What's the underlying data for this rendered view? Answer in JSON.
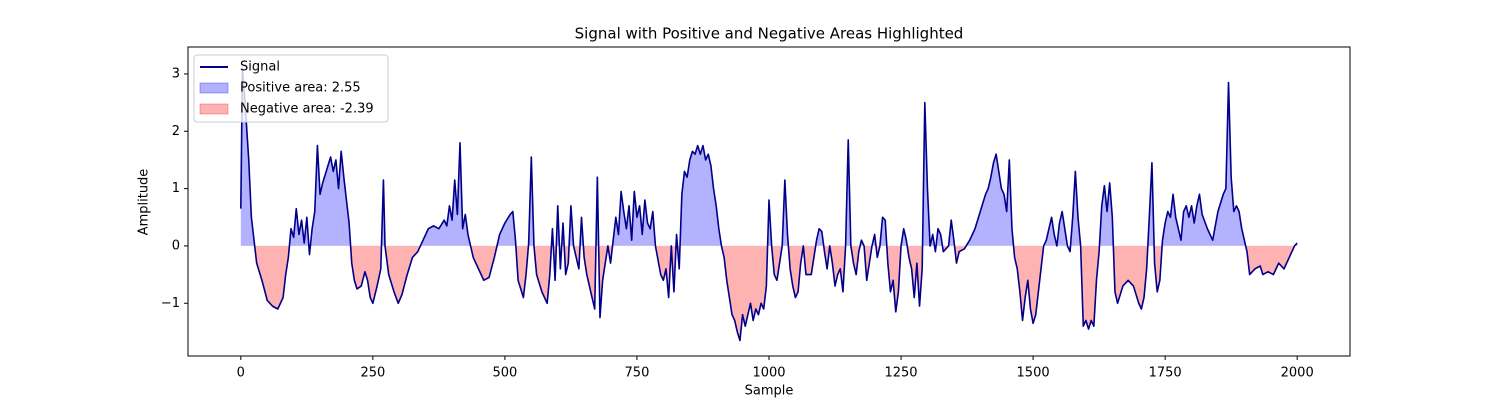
{
  "chart_data": {
    "type": "line",
    "title": "Signal with Positive and Negative Areas Highlighted",
    "x_label": "Sample",
    "y_label": "Amplitude",
    "xlim": [
      -100,
      2100
    ],
    "ylim": [
      -1.92,
      3.47
    ],
    "xticks": [
      0,
      250,
      500,
      750,
      1000,
      1250,
      1500,
      1750,
      2000
    ],
    "yticks": [
      {
        "value": -1,
        "label": "−1"
      },
      0,
      1,
      2,
      3
    ],
    "x": [
      0,
      3,
      8,
      15,
      20,
      25,
      30,
      40,
      50,
      60,
      70,
      80,
      85,
      90,
      95,
      100,
      105,
      110,
      115,
      120,
      125,
      130,
      135,
      140,
      145,
      150,
      155,
      165,
      170,
      175,
      180,
      185,
      190,
      195,
      200,
      205,
      210,
      215,
      220,
      228,
      235,
      240,
      245,
      250,
      258,
      265,
      270,
      273,
      280,
      290,
      298,
      305,
      315,
      325,
      335,
      345,
      355,
      365,
      375,
      385,
      390,
      395,
      400,
      405,
      410,
      415,
      420,
      425,
      430,
      440,
      450,
      460,
      470,
      480,
      490,
      500,
      510,
      515,
      520,
      525,
      535,
      540,
      545,
      550,
      555,
      560,
      570,
      580,
      585,
      590,
      595,
      600,
      605,
      610,
      615,
      620,
      625,
      630,
      640,
      645,
      650,
      655,
      660,
      665,
      670,
      675,
      680,
      685,
      690,
      695,
      700,
      710,
      715,
      720,
      725,
      730,
      735,
      740,
      745,
      750,
      755,
      760,
      765,
      770,
      775,
      780,
      785,
      795,
      800,
      805,
      810,
      815,
      820,
      825,
      830,
      835,
      840,
      845,
      850,
      855,
      860,
      865,
      870,
      875,
      880,
      885,
      890,
      895,
      900,
      905,
      910,
      915,
      920,
      925,
      930,
      935,
      940,
      945,
      950,
      955,
      960,
      965,
      970,
      975,
      980,
      985,
      990,
      995,
      1000,
      1005,
      1010,
      1015,
      1020,
      1025,
      1030,
      1035,
      1040,
      1045,
      1050,
      1055,
      1060,
      1065,
      1070,
      1080,
      1090,
      1095,
      1100,
      1105,
      1110,
      1115,
      1120,
      1125,
      1130,
      1135,
      1140,
      1145,
      1150,
      1155,
      1160,
      1165,
      1170,
      1175,
      1180,
      1185,
      1190,
      1195,
      1200,
      1205,
      1210,
      1215,
      1220,
      1225,
      1230,
      1235,
      1240,
      1245,
      1250,
      1255,
      1260,
      1265,
      1270,
      1275,
      1280,
      1285,
      1290,
      1295,
      1300,
      1305,
      1310,
      1315,
      1320,
      1325,
      1330,
      1340,
      1345,
      1350,
      1355,
      1360,
      1370,
      1380,
      1390,
      1400,
      1410,
      1415,
      1420,
      1425,
      1430,
      1435,
      1440,
      1445,
      1450,
      1455,
      1460,
      1465,
      1470,
      1475,
      1480,
      1485,
      1490,
      1495,
      1500,
      1505,
      1510,
      1515,
      1520,
      1525,
      1530,
      1535,
      1540,
      1545,
      1550,
      1555,
      1560,
      1565,
      1570,
      1575,
      1580,
      1585,
      1590,
      1595,
      1600,
      1605,
      1610,
      1615,
      1620,
      1625,
      1630,
      1635,
      1640,
      1645,
      1650,
      1655,
      1660,
      1670,
      1680,
      1690,
      1700,
      1705,
      1710,
      1715,
      1720,
      1725,
      1730,
      1735,
      1740,
      1745,
      1750,
      1755,
      1760,
      1765,
      1770,
      1775,
      1780,
      1785,
      1790,
      1795,
      1800,
      1805,
      1810,
      1815,
      1820,
      1830,
      1840,
      1850,
      1860,
      1865,
      1870,
      1875,
      1880,
      1885,
      1890,
      1895,
      1900,
      1905,
      1910,
      1920,
      1930,
      1935,
      1945,
      1955,
      1965,
      1975,
      1985,
      1995,
      2000
    ],
    "series": [
      {
        "name": "Signal",
        "color": "#00008b",
        "values": [
          0.65,
          3.1,
          2.5,
          1.5,
          0.5,
          0.1,
          -0.3,
          -0.6,
          -0.95,
          -1.05,
          -1.1,
          -0.9,
          -0.5,
          -0.2,
          0.3,
          0.15,
          0.65,
          0.2,
          0.45,
          0.05,
          0.5,
          -0.15,
          0.3,
          0.6,
          1.75,
          0.9,
          1.1,
          1.4,
          1.55,
          1.3,
          1.5,
          1.0,
          1.65,
          1.2,
          0.8,
          0.4,
          -0.3,
          -0.6,
          -0.75,
          -0.7,
          -0.45,
          -0.6,
          -0.9,
          -1.0,
          -0.7,
          -0.4,
          1.15,
          0.0,
          -0.5,
          -0.8,
          -1.0,
          -0.85,
          -0.5,
          -0.2,
          -0.1,
          0.1,
          0.3,
          0.35,
          0.3,
          0.45,
          0.35,
          0.7,
          0.45,
          1.15,
          0.55,
          1.8,
          0.3,
          0.55,
          0.2,
          -0.2,
          -0.4,
          -0.6,
          -0.55,
          -0.2,
          0.2,
          0.4,
          0.55,
          0.6,
          0.1,
          -0.6,
          -0.9,
          -0.5,
          0.05,
          1.55,
          0.0,
          -0.5,
          -0.8,
          -1.0,
          -0.5,
          0.3,
          -0.6,
          0.7,
          -0.4,
          0.4,
          -0.5,
          -0.3,
          0.7,
          0.0,
          -0.4,
          0.5,
          -0.2,
          -0.5,
          -0.7,
          -0.9,
          -1.1,
          1.2,
          -1.25,
          -0.6,
          -0.3,
          0.0,
          -0.3,
          0.5,
          0.2,
          0.95,
          0.6,
          0.3,
          0.7,
          0.1,
          0.95,
          0.5,
          0.7,
          0.2,
          0.8,
          0.4,
          0.3,
          0.6,
          0.0,
          -0.5,
          -0.6,
          -0.4,
          -0.9,
          0.0,
          -0.8,
          0.2,
          -0.4,
          0.9,
          1.3,
          1.2,
          1.5,
          1.65,
          1.6,
          1.75,
          1.6,
          1.75,
          1.5,
          1.6,
          1.4,
          1.0,
          0.7,
          0.3,
          0.0,
          -0.2,
          -0.6,
          -0.9,
          -1.2,
          -1.3,
          -1.5,
          -1.65,
          -1.2,
          -1.4,
          -1.2,
          -1.0,
          -1.3,
          -1.1,
          -1.2,
          -1.0,
          -1.1,
          -0.7,
          0.8,
          0.0,
          -0.5,
          -0.6,
          -0.3,
          0.0,
          1.15,
          0.2,
          -0.4,
          -0.7,
          -0.9,
          -0.8,
          -0.3,
          0.0,
          -0.5,
          -0.5,
          0.1,
          0.3,
          0.25,
          -0.1,
          -0.4,
          0.0,
          -0.3,
          -0.7,
          -0.5,
          -0.4,
          -0.8,
          0.0,
          1.85,
          0.0,
          -0.3,
          -0.5,
          -0.1,
          0.1,
          0.0,
          -0.6,
          -0.3,
          0.0,
          0.2,
          -0.2,
          0.0,
          0.5,
          0.45,
          -0.3,
          -0.8,
          -0.6,
          -1.15,
          -0.8,
          0.0,
          0.3,
          0.1,
          -0.2,
          -0.4,
          -0.9,
          -0.3,
          -1.05,
          -0.4,
          2.5,
          1.0,
          0.0,
          0.2,
          -0.1,
          0.3,
          0.2,
          -0.1,
          0.0,
          0.45,
          0.1,
          -0.3,
          -0.1,
          -0.05,
          0.1,
          0.3,
          0.6,
          0.9,
          1.0,
          1.2,
          1.45,
          1.6,
          1.3,
          1.0,
          0.9,
          0.6,
          1.5,
          0.3,
          -0.2,
          -0.4,
          -0.8,
          -1.3,
          -0.9,
          -0.6,
          -1.1,
          -1.35,
          -1.2,
          -0.8,
          -0.4,
          0.0,
          0.1,
          0.3,
          0.5,
          0.2,
          0.0,
          0.4,
          0.6,
          0.3,
          0.0,
          -0.1,
          0.5,
          1.3,
          0.5,
          0.0,
          -1.4,
          -1.3,
          -1.45,
          -1.3,
          -1.4,
          -0.6,
          -0.1,
          0.7,
          1.05,
          0.6,
          1.1,
          0.5,
          -0.8,
          -1.0,
          -0.7,
          -0.6,
          -0.7,
          -1.0,
          -1.1,
          -0.9,
          -0.4,
          0.5,
          1.45,
          -0.3,
          -0.8,
          -0.6,
          0.1,
          0.4,
          0.6,
          0.5,
          0.9,
          0.5,
          0.3,
          0.1,
          0.6,
          0.7,
          0.5,
          0.7,
          0.4,
          0.7,
          0.9,
          0.55,
          0.3,
          0.1,
          0.6,
          0.9,
          1.0,
          2.85,
          1.2,
          0.6,
          0.7,
          0.6,
          0.3,
          0.1,
          -0.1,
          -0.5,
          -0.4,
          -0.35,
          -0.5,
          -0.45,
          -0.5,
          -0.3,
          -0.4,
          -0.2,
          0.0,
          0.05
        ]
      }
    ],
    "fills": [
      {
        "name": "Positive area: 2.55",
        "color": "#0000ff"
      },
      {
        "name": "Negative area: -2.39",
        "color": "#ff0000"
      }
    ],
    "legend": "upper left"
  }
}
